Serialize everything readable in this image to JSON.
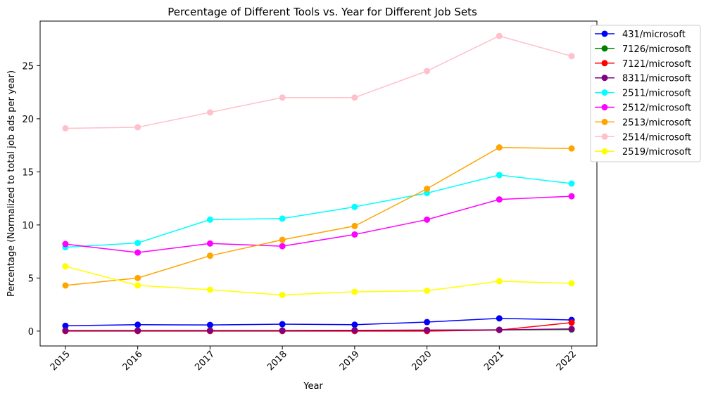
{
  "chart_data": {
    "type": "line",
    "title": "Percentage of Different Tools vs. Year for Different Job Sets",
    "xlabel": "Year",
    "ylabel": "Percentage (Normalized to total job ads per year)",
    "x": [
      2015,
      2016,
      2017,
      2018,
      2019,
      2020,
      2021,
      2022
    ],
    "xtick_labels": [
      "2015",
      "2016",
      "2017",
      "2018",
      "2019",
      "2020",
      "2021",
      "2022"
    ],
    "yticks": [
      0,
      5,
      10,
      15,
      20,
      25
    ],
    "ytick_labels": [
      "0",
      "5",
      "10",
      "15",
      "20",
      "25"
    ],
    "ylim": [
      -1.4,
      29.2
    ],
    "grid": false,
    "legend_position": "outside-top-right",
    "series": [
      {
        "name": "431/microsoft",
        "color": "#0000ff",
        "values": [
          0.5,
          0.6,
          0.58,
          0.65,
          0.6,
          0.85,
          1.2,
          1.05
        ]
      },
      {
        "name": "7126/microsoft",
        "color": "#008000",
        "values": [
          0.05,
          0.05,
          0.05,
          0.05,
          0.08,
          0.08,
          0.12,
          0.15
        ]
      },
      {
        "name": "7121/microsoft",
        "color": "#ff0000",
        "values": [
          0.0,
          0.0,
          0.0,
          0.0,
          0.0,
          0.0,
          0.1,
          0.8
        ]
      },
      {
        "name": "8311/microsoft",
        "color": "#800080",
        "values": [
          0.05,
          0.05,
          0.05,
          0.05,
          0.08,
          0.1,
          0.12,
          0.2
        ]
      },
      {
        "name": "2511/microsoft",
        "color": "#00ffff",
        "values": [
          7.9,
          8.3,
          10.5,
          10.6,
          11.7,
          13.0,
          14.7,
          13.9
        ]
      },
      {
        "name": "2512/microsoft",
        "color": "#ff00ff",
        "values": [
          8.2,
          7.4,
          8.25,
          8.0,
          9.1,
          10.5,
          12.4,
          12.7
        ]
      },
      {
        "name": "2513/microsoft",
        "color": "#ffa500",
        "values": [
          4.3,
          5.0,
          7.1,
          8.6,
          9.9,
          13.4,
          17.3,
          17.2
        ]
      },
      {
        "name": "2514/microsoft",
        "color": "#ffc0cb",
        "values": [
          19.1,
          19.2,
          20.6,
          22.0,
          22.0,
          24.5,
          27.8,
          25.9
        ]
      },
      {
        "name": "2519/microsoft",
        "color": "#ffff00",
        "values": [
          6.1,
          4.3,
          3.9,
          3.4,
          3.7,
          3.8,
          4.7,
          4.5
        ]
      }
    ]
  }
}
